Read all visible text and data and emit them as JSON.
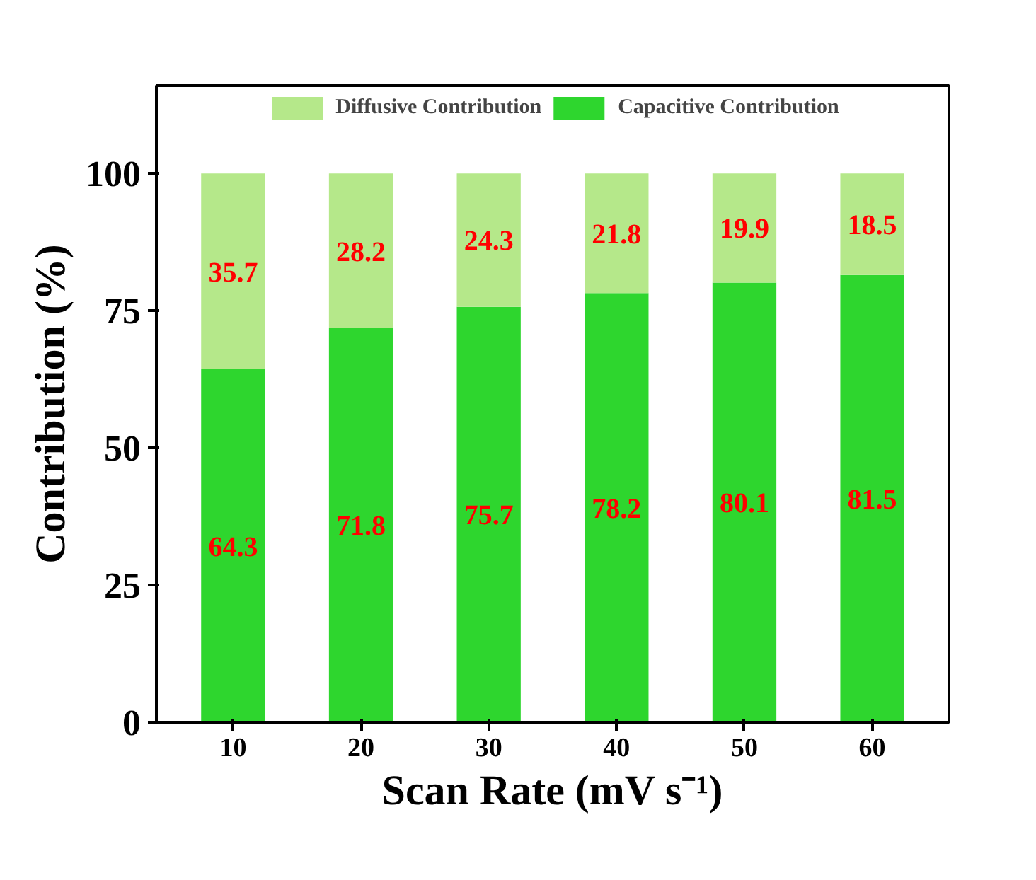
{
  "chart_data": {
    "type": "bar",
    "stacked": true,
    "xlabel": "Scan Rate (mV s⁻¹)",
    "ylabel": "Contribution (%)",
    "categories": [
      "10",
      "20",
      "30",
      "40",
      "50",
      "60"
    ],
    "series": [
      {
        "name": "Capacitive Contribution",
        "color": "#2ed62e",
        "values": [
          64.3,
          71.8,
          75.7,
          78.2,
          80.1,
          81.5
        ]
      },
      {
        "name": "Diffusive Contribution",
        "color": "#b5e88a",
        "values": [
          35.7,
          28.2,
          24.3,
          21.8,
          19.9,
          18.5
        ]
      }
    ],
    "ylim": [
      0,
      116
    ],
    "yticks": [
      0,
      25,
      50,
      75,
      100
    ],
    "grid": false,
    "legend": "top",
    "data_labels": true
  }
}
